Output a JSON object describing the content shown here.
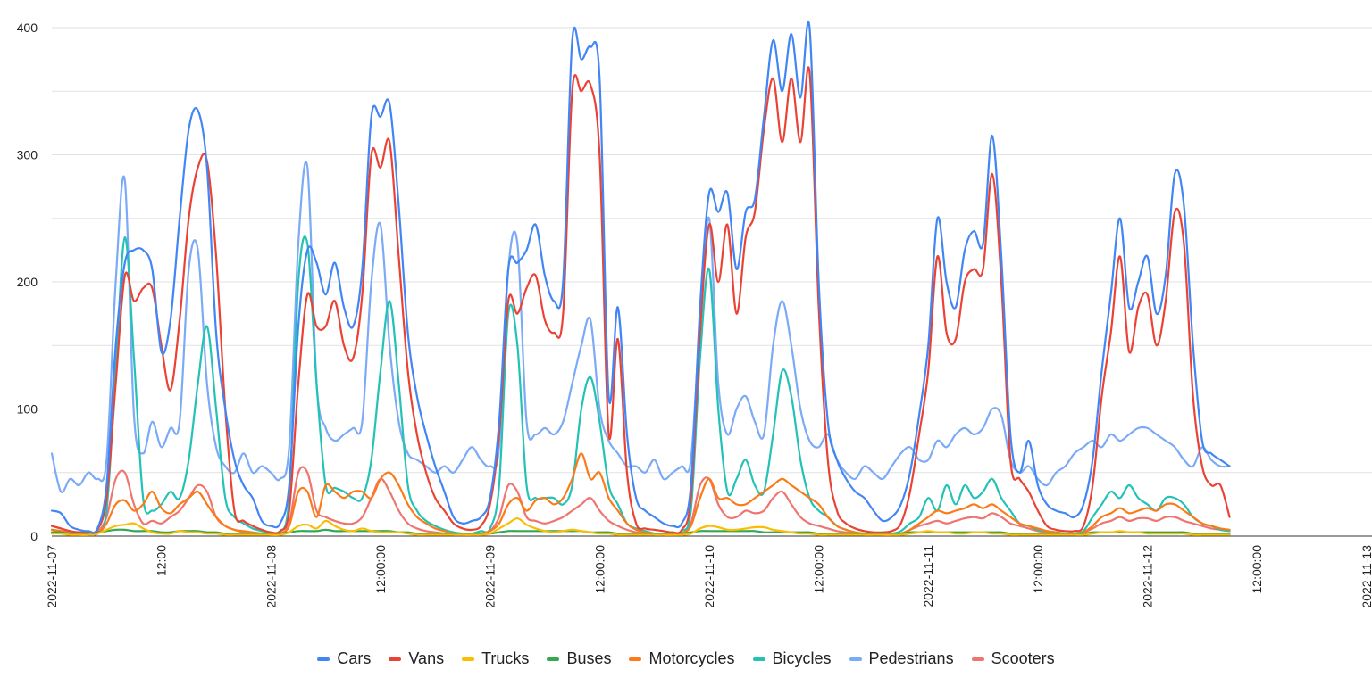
{
  "chart_data": {
    "type": "line",
    "title": "",
    "xlabel": "",
    "ylabel": "",
    "ylim": [
      0,
      400
    ],
    "yticks": [
      0,
      100,
      200,
      300,
      400
    ],
    "grid": true,
    "legend_position": "bottom",
    "x_start": "2022-11-07T00:00:00",
    "x_step_hours": 1,
    "x_ticks": [
      {
        "at": "2022-11-07T00:00:00",
        "label": "2022-11-07"
      },
      {
        "at": "2022-11-07T12:00:00",
        "label": "12:00"
      },
      {
        "at": "2022-11-08T00:00:00",
        "label": "2022-11-08"
      },
      {
        "at": "2022-11-08T12:00:00",
        "label": "12:00:00"
      },
      {
        "at": "2022-11-09T00:00:00",
        "label": "2022-11-09"
      },
      {
        "at": "2022-11-09T12:00:00",
        "label": "12:00:00"
      },
      {
        "at": "2022-11-10T00:00:00",
        "label": "2022-11-10"
      },
      {
        "at": "2022-11-10T12:00:00",
        "label": "12:00:00"
      },
      {
        "at": "2022-11-11T00:00:00",
        "label": "2022-11-11"
      },
      {
        "at": "2022-11-11T12:00:00",
        "label": "12:00:00"
      },
      {
        "at": "2022-11-12T00:00:00",
        "label": "2022-11-12"
      },
      {
        "at": "2022-11-12T12:00:00",
        "label": "12:00:00"
      },
      {
        "at": "2022-11-13T00:00:00",
        "label": "2022-11-13"
      }
    ],
    "series": [
      {
        "name": "Cars",
        "color": "#4285f4",
        "values": [
          20,
          18,
          8,
          5,
          4,
          6,
          40,
          150,
          215,
          225,
          225,
          210,
          145,
          170,
          250,
          320,
          335,
          290,
          160,
          100,
          60,
          40,
          30,
          12,
          8,
          10,
          40,
          165,
          225,
          215,
          190,
          215,
          180,
          165,
          210,
          330,
          330,
          340,
          260,
          160,
          110,
          80,
          55,
          35,
          15,
          10,
          12,
          15,
          30,
          90,
          210,
          215,
          225,
          245,
          205,
          185,
          200,
          390,
          375,
          385,
          360,
          110,
          180,
          80,
          30,
          20,
          15,
          10,
          8,
          10,
          40,
          180,
          270,
          255,
          270,
          210,
          255,
          265,
          330,
          390,
          350,
          395,
          345,
          400,
          200,
          90,
          60,
          45,
          35,
          30,
          20,
          12,
          15,
          25,
          50,
          95,
          150,
          250,
          200,
          180,
          225,
          240,
          230,
          315,
          220,
          80,
          50,
          75,
          40,
          25,
          20,
          18,
          15,
          25,
          60,
          130,
          190,
          250,
          180,
          200,
          220,
          175,
          205,
          285,
          260,
          150,
          75,
          65,
          60,
          55
        ]
      },
      {
        "name": "Vans",
        "color": "#ea4335",
        "values": [
          8,
          6,
          4,
          3,
          3,
          5,
          30,
          120,
          205,
          185,
          195,
          195,
          150,
          115,
          170,
          250,
          290,
          295,
          220,
          100,
          20,
          12,
          8,
          5,
          3,
          4,
          20,
          120,
          190,
          165,
          165,
          185,
          150,
          140,
          190,
          300,
          290,
          310,
          220,
          130,
          80,
          50,
          30,
          20,
          10,
          6,
          5,
          8,
          25,
          80,
          185,
          175,
          195,
          205,
          170,
          160,
          175,
          350,
          350,
          355,
          300,
          80,
          155,
          50,
          10,
          6,
          5,
          4,
          3,
          5,
          30,
          160,
          245,
          200,
          245,
          175,
          235,
          255,
          320,
          360,
          310,
          360,
          310,
          365,
          180,
          60,
          20,
          10,
          6,
          4,
          3,
          3,
          4,
          10,
          35,
          80,
          130,
          220,
          160,
          155,
          200,
          210,
          210,
          285,
          200,
          60,
          45,
          35,
          20,
          8,
          5,
          4,
          4,
          8,
          40,
          110,
          160,
          220,
          145,
          180,
          190,
          150,
          185,
          255,
          230,
          110,
          55,
          40,
          40,
          15
        ]
      },
      {
        "name": "Trucks",
        "color": "#fbbc04",
        "values": [
          2,
          2,
          1,
          1,
          1,
          2,
          5,
          8,
          9,
          10,
          6,
          3,
          2,
          2,
          4,
          3,
          3,
          2,
          2,
          1,
          1,
          1,
          1,
          1,
          1,
          1,
          3,
          8,
          9,
          6,
          12,
          8,
          5,
          4,
          6,
          4,
          3,
          3,
          3,
          2,
          1,
          1,
          1,
          1,
          1,
          1,
          1,
          1,
          2,
          6,
          10,
          14,
          9,
          6,
          4,
          3,
          4,
          5,
          4,
          3,
          2,
          2,
          1,
          1,
          1,
          1,
          1,
          1,
          1,
          1,
          2,
          6,
          8,
          7,
          5,
          5,
          6,
          7,
          7,
          5,
          4,
          3,
          2,
          2,
          1,
          1,
          1,
          1,
          1,
          1,
          1,
          1,
          1,
          1,
          2,
          3,
          4,
          3,
          3,
          2,
          2,
          3,
          3,
          2,
          2,
          1,
          1,
          1,
          1,
          1,
          1,
          1,
          1,
          1,
          2,
          3,
          3,
          4,
          3,
          3,
          2,
          2,
          2,
          2,
          2,
          1,
          1,
          1,
          1,
          1
        ]
      },
      {
        "name": "Buses",
        "color": "#34a853",
        "values": [
          3,
          3,
          2,
          2,
          2,
          3,
          4,
          5,
          5,
          4,
          4,
          4,
          3,
          3,
          4,
          4,
          4,
          3,
          3,
          2,
          2,
          2,
          2,
          2,
          2,
          2,
          3,
          4,
          4,
          4,
          5,
          4,
          4,
          4,
          4,
          4,
          4,
          4,
          3,
          3,
          2,
          2,
          2,
          2,
          2,
          2,
          2,
          2,
          2,
          3,
          4,
          4,
          4,
          4,
          4,
          4,
          4,
          4,
          4,
          3,
          3,
          3,
          2,
          2,
          2,
          2,
          2,
          2,
          2,
          2,
          3,
          4,
          4,
          4,
          4,
          4,
          4,
          4,
          3,
          3,
          3,
          3,
          3,
          3,
          2,
          2,
          2,
          2,
          2,
          2,
          2,
          2,
          2,
          2,
          3,
          3,
          3,
          3,
          3,
          3,
          3,
          3,
          3,
          3,
          3,
          2,
          2,
          2,
          2,
          2,
          2,
          2,
          2,
          2,
          3,
          3,
          3,
          3,
          3,
          3,
          3,
          3,
          3,
          3,
          3,
          2,
          2,
          2,
          2,
          2
        ]
      },
      {
        "name": "Motorcycles",
        "color": "#fa7b17",
        "values": [
          5,
          4,
          2,
          1,
          1,
          2,
          10,
          25,
          28,
          20,
          25,
          35,
          22,
          18,
          25,
          30,
          35,
          25,
          15,
          8,
          5,
          4,
          3,
          2,
          1,
          2,
          8,
          35,
          35,
          15,
          40,
          35,
          30,
          35,
          35,
          30,
          45,
          50,
          40,
          25,
          15,
          10,
          6,
          4,
          2,
          1,
          1,
          2,
          4,
          10,
          25,
          30,
          20,
          28,
          30,
          25,
          30,
          45,
          65,
          45,
          50,
          30,
          20,
          10,
          5,
          3,
          2,
          1,
          1,
          2,
          8,
          30,
          45,
          30,
          30,
          25,
          25,
          30,
          35,
          40,
          45,
          40,
          35,
          30,
          25,
          15,
          8,
          5,
          3,
          2,
          2,
          1,
          1,
          2,
          5,
          10,
          15,
          20,
          18,
          20,
          22,
          25,
          22,
          25,
          20,
          15,
          10,
          8,
          6,
          4,
          3,
          2,
          2,
          3,
          8,
          15,
          18,
          22,
          18,
          20,
          22,
          20,
          25,
          25,
          20,
          15,
          10,
          8,
          6,
          5
        ]
      },
      {
        "name": "Bicycles",
        "color": "#24c1b6",
        "values": [
          5,
          4,
          2,
          1,
          1,
          2,
          20,
          130,
          235,
          140,
          30,
          20,
          25,
          35,
          30,
          60,
          120,
          165,
          100,
          30,
          15,
          10,
          6,
          4,
          2,
          3,
          30,
          200,
          230,
          120,
          40,
          38,
          35,
          30,
          30,
          60,
          130,
          185,
          120,
          40,
          20,
          12,
          8,
          5,
          3,
          2,
          2,
          4,
          6,
          40,
          175,
          150,
          40,
          30,
          30,
          30,
          25,
          40,
          100,
          125,
          90,
          40,
          25,
          10,
          6,
          4,
          2,
          2,
          2,
          4,
          20,
          140,
          210,
          100,
          35,
          45,
          60,
          40,
          35,
          80,
          130,
          110,
          60,
          30,
          20,
          15,
          8,
          5,
          3,
          2,
          2,
          2,
          2,
          4,
          10,
          15,
          30,
          20,
          40,
          25,
          40,
          30,
          35,
          45,
          30,
          20,
          10,
          8,
          5,
          4,
          3,
          2,
          2,
          4,
          15,
          25,
          35,
          30,
          40,
          30,
          25,
          20,
          30,
          30,
          25,
          15,
          10,
          8,
          5,
          4
        ]
      },
      {
        "name": "Pedestrians",
        "color": "#7baaf7",
        "values": [
          65,
          35,
          45,
          40,
          50,
          45,
          60,
          200,
          280,
          95,
          65,
          90,
          70,
          85,
          90,
          210,
          225,
          120,
          70,
          55,
          50,
          65,
          50,
          55,
          50,
          45,
          70,
          230,
          290,
          120,
          85,
          75,
          80,
          85,
          90,
          200,
          245,
          150,
          90,
          65,
          60,
          55,
          50,
          55,
          50,
          60,
          70,
          60,
          55,
          70,
          210,
          230,
          90,
          80,
          85,
          80,
          90,
          120,
          150,
          170,
          100,
          75,
          65,
          55,
          55,
          50,
          60,
          45,
          50,
          55,
          60,
          170,
          250,
          120,
          80,
          100,
          110,
          90,
          80,
          150,
          185,
          150,
          100,
          75,
          70,
          80,
          60,
          50,
          45,
          55,
          50,
          45,
          55,
          65,
          70,
          60,
          60,
          75,
          70,
          80,
          85,
          80,
          85,
          100,
          95,
          60,
          50,
          55,
          45,
          40,
          50,
          55,
          65,
          70,
          75,
          70,
          80,
          75,
          80,
          85,
          85,
          80,
          75,
          70,
          60,
          55,
          70,
          60,
          55,
          55
        ]
      },
      {
        "name": "Scooters",
        "color": "#ee7570",
        "values": [
          8,
          6,
          3,
          2,
          2,
          3,
          15,
          45,
          50,
          25,
          10,
          12,
          10,
          15,
          20,
          30,
          40,
          35,
          15,
          8,
          5,
          3,
          2,
          2,
          1,
          2,
          10,
          50,
          50,
          20,
          15,
          12,
          10,
          10,
          15,
          30,
          45,
          35,
          20,
          10,
          6,
          4,
          3,
          2,
          1,
          1,
          1,
          2,
          4,
          15,
          40,
          35,
          15,
          12,
          10,
          12,
          15,
          20,
          25,
          30,
          20,
          12,
          8,
          5,
          3,
          2,
          1,
          1,
          1,
          2,
          10,
          40,
          45,
          25,
          15,
          15,
          20,
          18,
          20,
          30,
          35,
          25,
          15,
          10,
          8,
          6,
          4,
          3,
          2,
          1,
          1,
          1,
          1,
          2,
          5,
          8,
          10,
          12,
          10,
          12,
          14,
          15,
          14,
          18,
          15,
          10,
          8,
          6,
          4,
          3,
          2,
          2,
          2,
          3,
          6,
          10,
          12,
          15,
          12,
          14,
          14,
          12,
          15,
          15,
          12,
          10,
          8,
          6,
          5,
          4
        ]
      }
    ]
  }
}
